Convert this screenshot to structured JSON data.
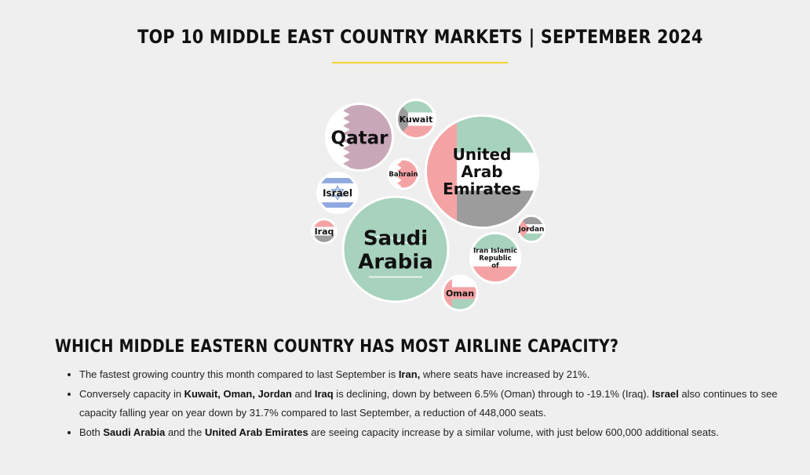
{
  "header": {
    "title": "TOP 10 MIDDLE EAST COUNTRY MARKETS | SEPTEMBER 2024"
  },
  "chart_data": {
    "type": "bubble",
    "title": "TOP 10 MIDDLE EAST COUNTRY MARKETS | SEPTEMBER 2024",
    "note": "Circle size represents relative airline seat capacity; values estimated from bubble area (Saudi Arabia = 100).",
    "bubbles": [
      {
        "name": "Saudi Arabia",
        "lines": [
          "Saudi",
          "Arabia"
        ],
        "value": 100,
        "flag": "saudi-arabia"
      },
      {
        "name": "United Arab Emirates",
        "lines": [
          "United",
          "Arab",
          "Emirates"
        ],
        "value": 114,
        "flag": "uae"
      },
      {
        "name": "Qatar",
        "lines": [
          "Qatar"
        ],
        "value": 41,
        "flag": "qatar"
      },
      {
        "name": "Kuwait",
        "lines": [
          "Kuwait"
        ],
        "value": 14,
        "flag": "kuwait"
      },
      {
        "name": "Bahrain",
        "lines": [
          "Bahrain"
        ],
        "value": 8.5,
        "flag": "bahrain"
      },
      {
        "name": "Israel",
        "lines": [
          "Israel"
        ],
        "value": 15,
        "flag": "israel"
      },
      {
        "name": "Iraq",
        "lines": [
          "Iraq"
        ],
        "value": 5.8,
        "flag": "iraq"
      },
      {
        "name": "Iran Islamic Republic of",
        "lines": [
          "Iran Islamic",
          "Republic",
          "of"
        ],
        "value": 23,
        "flag": "iran"
      },
      {
        "name": "Jordan",
        "lines": [
          "Jordan"
        ],
        "value": 6.8,
        "flag": "jordan"
      },
      {
        "name": "Oman",
        "lines": [
          "Oman"
        ],
        "value": 11.5,
        "flag": "oman"
      }
    ],
    "colors": {
      "green": "#a7d2bd",
      "red": "#f4a3a5",
      "gray": "#9c9c9c",
      "white": "#ffffff",
      "maroon": "#c8a7b8",
      "blue": "#8fa9e0",
      "border": "#ffffff"
    }
  },
  "section": {
    "heading": "WHICH MIDDLE EASTERN COUNTRY HAS MOST AIRLINE CAPACITY?",
    "bullets": [
      [
        {
          "t": "The fastest growing country this month compared to last September is ",
          "b": false
        },
        {
          "t": "Iran,",
          "b": true
        },
        {
          "t": " where seats have increased by 21%.",
          "b": false
        }
      ],
      [
        {
          "t": "Conversely capacity in ",
          "b": false
        },
        {
          "t": "Kuwait, Oman, Jordan",
          "b": true
        },
        {
          "t": " and ",
          "b": false
        },
        {
          "t": "Iraq",
          "b": true
        },
        {
          "t": " is declining, down by between 6.5% (Oman) through to -19.1% (Iraq). ",
          "b": false
        },
        {
          "t": "Israel",
          "b": true
        },
        {
          "t": " also continues to see capacity falling year on year down by 31.7% compared to last September, a reduction of 448,000 seats.",
          "b": false
        }
      ],
      [
        {
          "t": "Both ",
          "b": false
        },
        {
          "t": "Saudi Arabia",
          "b": true
        },
        {
          "t": " and the ",
          "b": false
        },
        {
          "t": "United Arab Emirates",
          "b": true
        },
        {
          "t": " are seeing capacity increase by a similar volume,  with just below 600,000 additional seats.",
          "b": false
        }
      ]
    ]
  }
}
